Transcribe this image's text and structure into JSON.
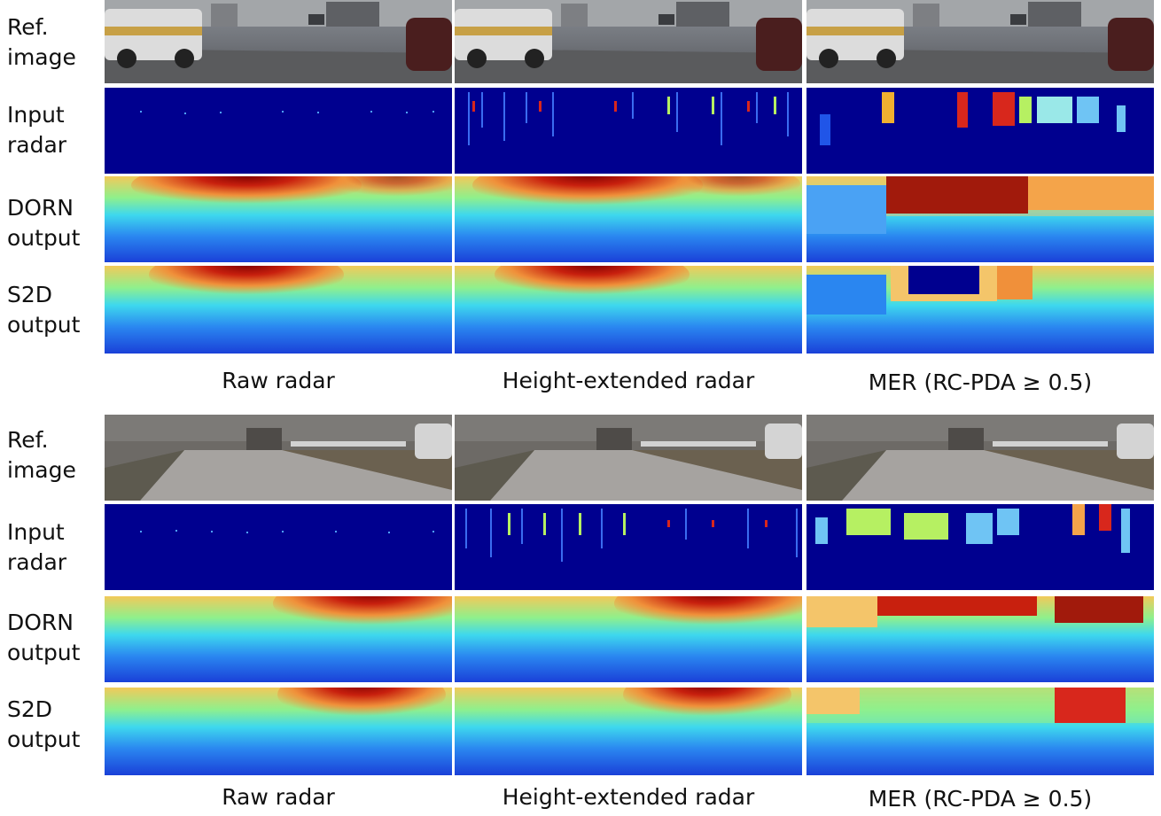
{
  "figure": {
    "blocks": [
      {
        "rows": [
          {
            "label_line1": "Ref.",
            "label_line2": "image"
          },
          {
            "label_line1": "Input",
            "label_line2": "radar"
          },
          {
            "label_line1": "DORN",
            "label_line2": "output"
          },
          {
            "label_line1": "S2D",
            "label_line2": "output"
          }
        ],
        "columns": [
          "Raw radar",
          "Height-extended radar",
          "MER (RC-PDA ≥ 0.5)"
        ]
      },
      {
        "rows": [
          {
            "label_line1": "Ref.",
            "label_line2": "image"
          },
          {
            "label_line1": "Input",
            "label_line2": "radar"
          },
          {
            "label_line1": "DORN",
            "label_line2": "output"
          },
          {
            "label_line1": "S2D",
            "label_line2": "output"
          }
        ],
        "columns": [
          "Raw radar",
          "Height-extended radar",
          "MER (RC-PDA ≥ 0.5)"
        ]
      }
    ]
  },
  "colors": {
    "jet_dark_blue": "#00008f",
    "jet_blue": "#1a4fe0",
    "jet_cyan": "#33d6f0",
    "jet_yellow": "#f4f060",
    "jet_red": "#d8271c",
    "jet_dark_red": "#800000"
  }
}
